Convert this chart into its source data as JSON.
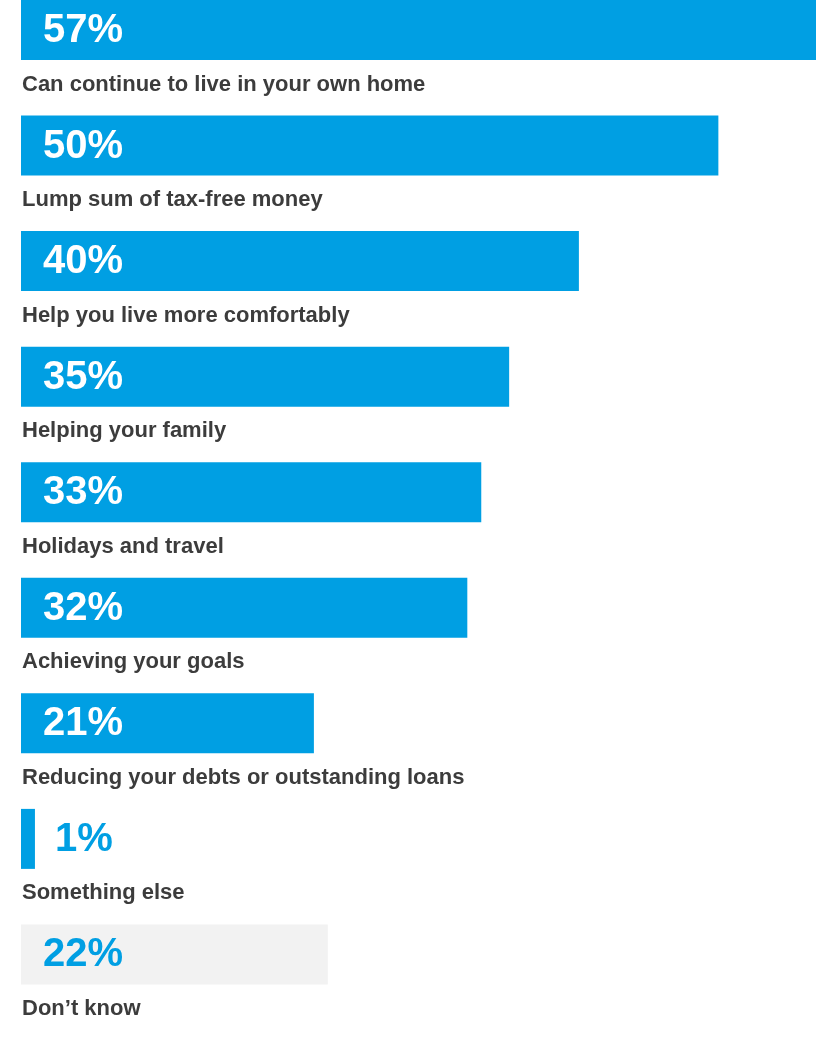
{
  "chart_data": {
    "type": "bar",
    "orientation": "horizontal",
    "categories": [
      "Can continue to live in your own home",
      "Lump sum of tax-free money",
      "Help you live more comfortably",
      "Helping your family",
      "Holidays and travel",
      "Achieving your goals",
      "Reducing your debts or outstanding loans",
      "Something else",
      "Don’t know"
    ],
    "values": [
      57,
      50,
      40,
      35,
      33,
      32,
      21,
      1,
      22
    ],
    "value_labels": [
      "57%",
      "50%",
      "40%",
      "35%",
      "33%",
      "32%",
      "21%",
      "1%",
      "22%"
    ],
    "colors": [
      "#009fe3",
      "#009fe3",
      "#009fe3",
      "#009fe3",
      "#009fe3",
      "#009fe3",
      "#009fe3",
      "#009fe3",
      "#f2f2f2"
    ]
  }
}
